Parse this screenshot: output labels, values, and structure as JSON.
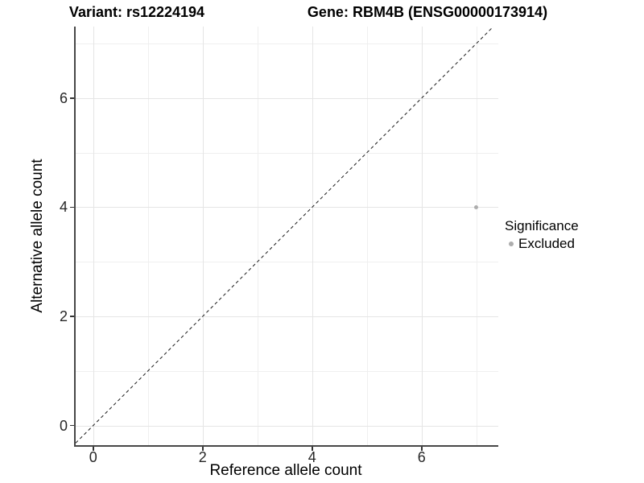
{
  "chart_data": {
    "type": "scatter",
    "title_left": "Variant: rs12224194",
    "title_right": "Gene: RBM4B (ENSG00000173914)",
    "xlabel": "Reference allele count",
    "ylabel": "Alternative allele count",
    "x_ticks": [
      0,
      2,
      4,
      6
    ],
    "y_ticks": [
      0,
      2,
      4,
      6
    ],
    "x_minor_ticks": [
      1,
      3,
      5,
      7
    ],
    "y_minor_ticks": [
      1,
      3,
      5,
      7
    ],
    "xlim": [
      -0.32,
      7.4
    ],
    "ylim": [
      -0.36,
      7.31
    ],
    "grid": true,
    "legend_position": "right",
    "legend_title": "Significance",
    "series": [
      {
        "name": "Excluded",
        "color": "#adadad",
        "points": [
          {
            "x": 7,
            "y": 4
          }
        ]
      }
    ],
    "reference_line": {
      "type": "identity y=x",
      "style": "dashed",
      "color": "#1a1a1a"
    }
  },
  "colors": {
    "grid_major": "#e5e5e5",
    "grid_minor": "#efefef",
    "axis_line": "#474747",
    "tick_text": "#262626",
    "point_gray": "#adadad",
    "dashed_line": "#1a1a1a"
  }
}
